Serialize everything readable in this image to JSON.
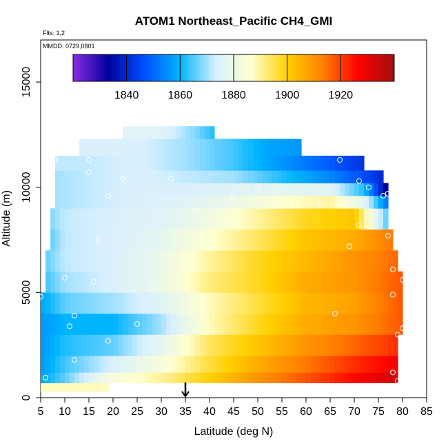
{
  "chart_data": {
    "type": "heatmap",
    "title": "ATOM1 Northeast_Pacific CH4_GMI",
    "annotations": {
      "flights": "Flts: 1,2",
      "dates": "MMDD: 0729,0801"
    },
    "xlabel": "Latitude (deg N)",
    "ylabel": "Altitude (m)",
    "xlim": [
      5,
      85
    ],
    "ylim": [
      0,
      17000
    ],
    "x_ticks": [
      5,
      10,
      15,
      20,
      25,
      30,
      35,
      40,
      45,
      50,
      55,
      60,
      65,
      70,
      75,
      80,
      85
    ],
    "y_ticks": [
      0,
      5000,
      10000,
      15000
    ],
    "colorbar": {
      "range": [
        1820,
        1940
      ],
      "ticks": [
        1840,
        1860,
        1880,
        1900,
        1920
      ],
      "colors": [
        "#8a2be2",
        "#0000a0",
        "#0050ff",
        "#00b4ff",
        "#d8f0ff",
        "#ffffd0",
        "#ffd000",
        "#ff8000",
        "#ff0000",
        "#a01010"
      ],
      "location": "top"
    },
    "grid": false,
    "marker_latitude": 35,
    "profile_rows": [
      {
        "alt": [
          300,
          700
        ],
        "lat": [
          5,
          19
        ],
        "value": 1888
      },
      {
        "alt": [
          700,
          1200
        ],
        "lat": [
          5,
          79
        ],
        "samples": [
          [
            5,
            1858
          ],
          [
            10,
            1866
          ],
          [
            20,
            1884
          ],
          [
            30,
            1890
          ],
          [
            40,
            1900
          ],
          [
            50,
            1910
          ],
          [
            60,
            1918
          ],
          [
            70,
            1926
          ],
          [
            79,
            1934
          ]
        ]
      },
      {
        "alt": [
          1200,
          2000
        ],
        "lat": [
          5,
          79
        ],
        "samples": [
          [
            5,
            1856
          ],
          [
            10,
            1864
          ],
          [
            20,
            1874
          ],
          [
            30,
            1884
          ],
          [
            40,
            1896
          ],
          [
            50,
            1906
          ],
          [
            60,
            1914
          ],
          [
            70,
            1922
          ],
          [
            79,
            1928
          ]
        ]
      },
      {
        "alt": [
          2000,
          3000
        ],
        "lat": [
          5,
          79
        ],
        "samples": [
          [
            5,
            1856
          ],
          [
            10,
            1862
          ],
          [
            20,
            1866
          ],
          [
            30,
            1878
          ],
          [
            40,
            1894
          ],
          [
            50,
            1902
          ],
          [
            60,
            1910
          ],
          [
            70,
            1916
          ],
          [
            79,
            1922
          ]
        ]
      },
      {
        "alt": [
          3000,
          4000
        ],
        "lat": [
          5,
          80
        ],
        "samples": [
          [
            5,
            1856
          ],
          [
            10,
            1860
          ],
          [
            20,
            1860
          ],
          [
            30,
            1870
          ],
          [
            40,
            1888
          ],
          [
            50,
            1898
          ],
          [
            60,
            1906
          ],
          [
            70,
            1910
          ],
          [
            80,
            1918
          ]
        ]
      },
      {
        "alt": [
          4000,
          5000
        ],
        "lat": [
          5,
          80
        ],
        "samples": [
          [
            5,
            1858
          ],
          [
            10,
            1866
          ],
          [
            20,
            1870
          ],
          [
            30,
            1876
          ],
          [
            40,
            1888
          ],
          [
            50,
            1896
          ],
          [
            60,
            1904
          ],
          [
            70,
            1908
          ],
          [
            80,
            1918
          ]
        ]
      },
      {
        "alt": [
          5000,
          6000
        ],
        "lat": [
          6,
          80
        ],
        "samples": [
          [
            6,
            1864
          ],
          [
            10,
            1870
          ],
          [
            20,
            1874
          ],
          [
            30,
            1880
          ],
          [
            40,
            1892
          ],
          [
            50,
            1898
          ],
          [
            60,
            1906
          ],
          [
            70,
            1910
          ],
          [
            80,
            1918
          ]
        ]
      },
      {
        "alt": [
          6000,
          7000
        ],
        "lat": [
          6,
          79
        ],
        "samples": [
          [
            6,
            1866
          ],
          [
            10,
            1872
          ],
          [
            20,
            1874
          ],
          [
            30,
            1880
          ],
          [
            40,
            1890
          ],
          [
            50,
            1898
          ],
          [
            60,
            1904
          ],
          [
            70,
            1910
          ],
          [
            79,
            1916
          ]
        ]
      },
      {
        "alt": [
          7000,
          8000
        ],
        "lat": [
          7,
          78
        ],
        "samples": [
          [
            7,
            1866
          ],
          [
            10,
            1872
          ],
          [
            20,
            1874
          ],
          [
            30,
            1878
          ],
          [
            40,
            1886
          ],
          [
            50,
            1894
          ],
          [
            60,
            1902
          ],
          [
            70,
            1906
          ],
          [
            78,
            1914
          ]
        ]
      },
      {
        "alt": [
          8000,
          9000
        ],
        "lat": [
          7,
          77
        ],
        "samples": [
          [
            7,
            1868
          ],
          [
            10,
            1872
          ],
          [
            20,
            1874
          ],
          [
            30,
            1876
          ],
          [
            40,
            1882
          ],
          [
            50,
            1890
          ],
          [
            60,
            1898
          ],
          [
            70,
            1902
          ],
          [
            77,
            1864
          ]
        ]
      },
      {
        "alt": [
          9000,
          9600
        ],
        "lat": [
          8,
          77
        ],
        "samples": [
          [
            8,
            1870
          ],
          [
            15,
            1872
          ],
          [
            25,
            1874
          ],
          [
            35,
            1876
          ],
          [
            45,
            1880
          ],
          [
            55,
            1886
          ],
          [
            65,
            1890
          ],
          [
            72,
            1878
          ],
          [
            77,
            1850
          ]
        ]
      },
      {
        "alt": [
          9600,
          10200
        ],
        "lat": [
          8,
          77
        ],
        "samples": [
          [
            8,
            1870
          ],
          [
            15,
            1872
          ],
          [
            25,
            1874
          ],
          [
            35,
            1874
          ],
          [
            45,
            1876
          ],
          [
            55,
            1878
          ],
          [
            65,
            1876
          ],
          [
            72,
            1862
          ],
          [
            77,
            1830
          ]
        ]
      },
      {
        "alt": [
          10200,
          10800
        ],
        "lat": [
          8,
          76
        ],
        "samples": [
          [
            8,
            1870
          ],
          [
            15,
            1872
          ],
          [
            25,
            1874
          ],
          [
            35,
            1872
          ],
          [
            45,
            1870
          ],
          [
            55,
            1862
          ],
          [
            65,
            1854
          ],
          [
            72,
            1846
          ],
          [
            76,
            1840
          ]
        ]
      },
      {
        "alt": [
          10800,
          11500
        ],
        "lat": [
          8,
          72
        ],
        "samples": [
          [
            8,
            1872
          ],
          [
            15,
            1872
          ],
          [
            25,
            1874
          ],
          [
            35,
            1870
          ],
          [
            45,
            1864
          ],
          [
            55,
            1856
          ],
          [
            65,
            1848
          ],
          [
            72,
            1842
          ]
        ]
      },
      {
        "alt": [
          11500,
          12300
        ],
        "lat": [
          13,
          59
        ],
        "samples": [
          [
            13,
            1874
          ],
          [
            25,
            1874
          ],
          [
            35,
            1870
          ],
          [
            45,
            1864
          ],
          [
            52,
            1858
          ],
          [
            59,
            1856
          ]
        ]
      },
      {
        "alt": [
          12300,
          12900
        ],
        "lat": [
          22,
          41
        ],
        "samples": [
          [
            22,
            1876
          ],
          [
            30,
            1876
          ],
          [
            37,
            1868
          ],
          [
            41,
            1862
          ]
        ]
      }
    ],
    "points": [
      [
        5,
        4800
      ],
      [
        6,
        950
      ],
      [
        8,
        11300
      ],
      [
        10,
        5700
      ],
      [
        11,
        3400
      ],
      [
        12,
        1800
      ],
      [
        12,
        3900
      ],
      [
        15,
        11300
      ],
      [
        15,
        10700
      ],
      [
        16,
        5500
      ],
      [
        17,
        7500
      ],
      [
        19,
        9600
      ],
      [
        19,
        2700
      ],
      [
        22,
        10400
      ],
      [
        25,
        3500
      ],
      [
        26,
        900
      ],
      [
        28,
        5200
      ],
      [
        32,
        10400
      ],
      [
        37,
        8900
      ],
      [
        45,
        9500
      ],
      [
        50,
        10000
      ],
      [
        63,
        9200
      ],
      [
        66,
        4000
      ],
      [
        67,
        11300
      ],
      [
        69,
        7200
      ],
      [
        71,
        8200
      ],
      [
        71,
        10300
      ],
      [
        73,
        10000
      ],
      [
        76,
        9600
      ],
      [
        77,
        9700
      ],
      [
        77,
        7700
      ],
      [
        78,
        6100
      ],
      [
        78,
        4900
      ],
      [
        78,
        1200
      ],
      [
        79,
        800
      ],
      [
        79,
        3000
      ],
      [
        80,
        3300
      ],
      [
        80,
        5600
      ]
    ]
  }
}
